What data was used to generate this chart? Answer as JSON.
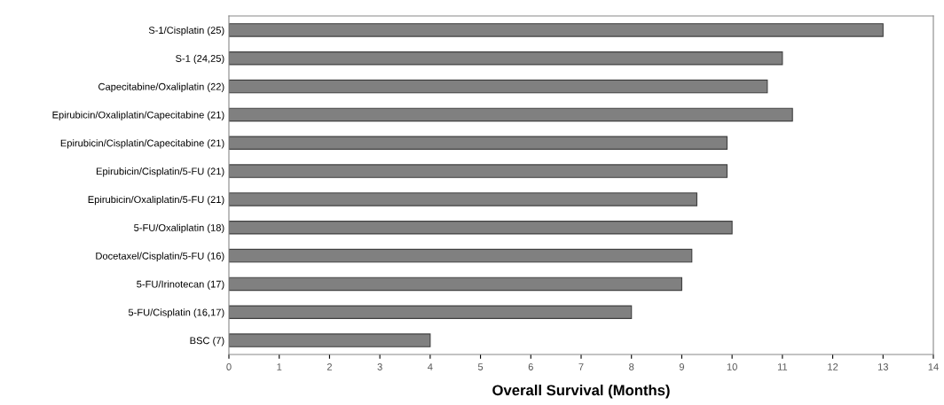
{
  "chart_data": {
    "type": "bar",
    "orientation": "horizontal",
    "xlabel": "Overall Survival (Months)",
    "categories": [
      "S-1/Cisplatin (25)",
      "S-1 (24,25)",
      "Capecitabine/Oxaliplatin (22)",
      "Epirubicin/Oxaliplatin/Capecitabine (21)",
      "Epirubicin/Cisplatin/Capecitabine (21)",
      "Epirubicin/Cisplatin/5-FU (21)",
      "Epirubicin/Oxaliplatin/5-FU (21)",
      "5-FU/Oxaliplatin (18)",
      "Docetaxel/Cisplatin/5-FU (16)",
      "5-FU/Irinotecan (17)",
      "5-FU/Cisplatin (16,17)",
      "BSC (7)"
    ],
    "values": [
      13,
      11,
      10.7,
      11.2,
      9.9,
      9.9,
      9.3,
      10,
      9.2,
      9,
      8,
      4
    ],
    "color": "#808080",
    "xlim": [
      0,
      14
    ],
    "xticks": [
      0,
      1,
      2,
      3,
      4,
      5,
      6,
      7,
      8,
      9,
      10,
      11,
      12,
      13,
      14
    ],
    "grid": false,
    "legend": false
  }
}
